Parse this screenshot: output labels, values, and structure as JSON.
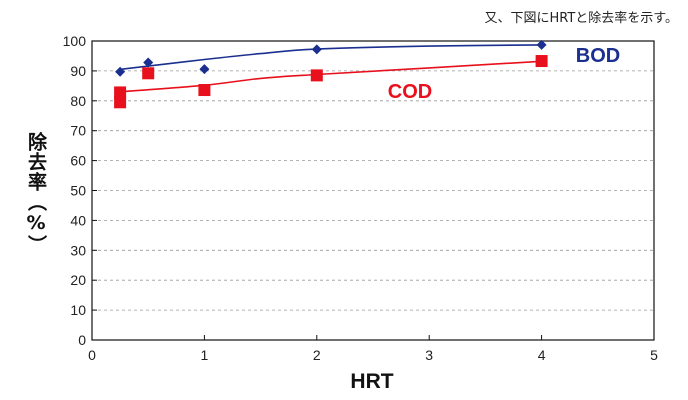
{
  "caption": "又、下図にHRTと除去率を示す。",
  "chart_data": {
    "type": "line",
    "xlabel": "HRT",
    "ylabel": "除去率（%）",
    "xlim": [
      0,
      5
    ],
    "ylim": [
      0,
      100
    ],
    "x_ticks": [
      "0",
      "1",
      "2",
      "3",
      "4",
      "5"
    ],
    "y_ticks": [
      "0",
      "10",
      "20",
      "30",
      "40",
      "50",
      "60",
      "70",
      "80",
      "90",
      "100"
    ],
    "grid": "horizontal-dashed",
    "series": [
      {
        "name": "BOD",
        "color": "#1a2f8f",
        "marker": "diamond",
        "points": [
          [
            0.25,
            89.7
          ],
          [
            0.5,
            92.8
          ],
          [
            1,
            90.6
          ],
          [
            2,
            97.2
          ],
          [
            4,
            98.7
          ]
        ],
        "trend": [
          [
            0.25,
            90.5
          ],
          [
            0.5,
            91.6
          ],
          [
            1,
            93.8
          ],
          [
            1.5,
            95.8
          ],
          [
            2,
            97.3
          ],
          [
            3,
            98.3
          ],
          [
            4,
            98.7
          ]
        ]
      },
      {
        "name": "COD",
        "color": "#e8101c",
        "marker": "square",
        "points": [
          [
            0.25,
            82.8
          ],
          [
            0.25,
            79.5
          ],
          [
            0.5,
            89.2
          ],
          [
            1,
            83.6
          ],
          [
            2,
            88.5
          ],
          [
            4,
            93.3
          ]
        ],
        "trend": [
          [
            0.25,
            83.0
          ],
          [
            1,
            85.2
          ],
          [
            1.5,
            87.5
          ],
          [
            2,
            88.8
          ],
          [
            3,
            91.0
          ],
          [
            4,
            93.2
          ]
        ]
      }
    ]
  }
}
